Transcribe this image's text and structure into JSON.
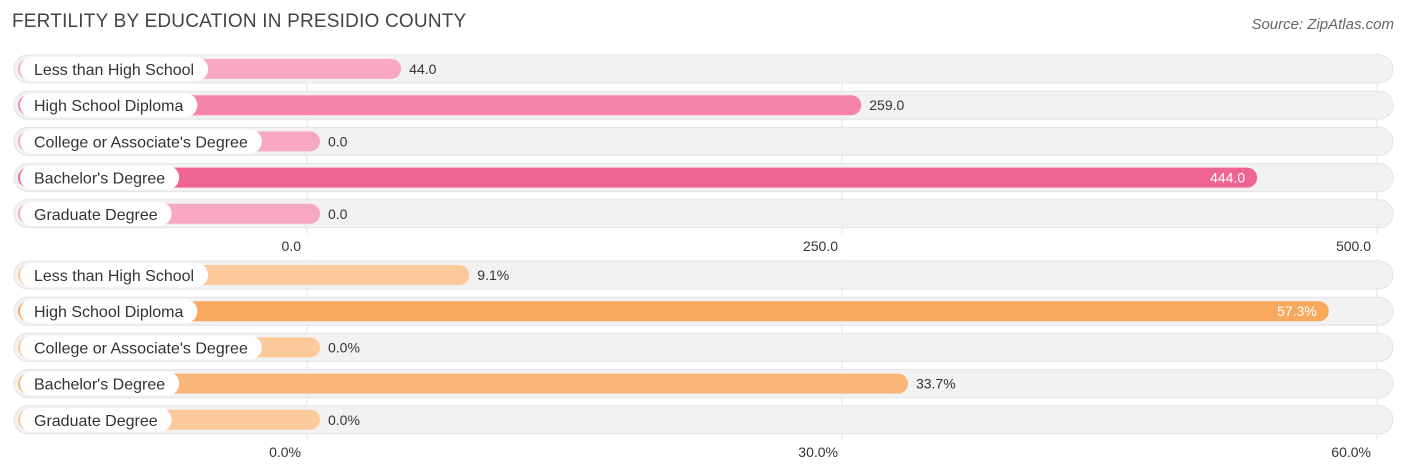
{
  "title": "FERTILITY BY EDUCATION IN PRESIDIO COUNTY",
  "source": "Source: ZipAtlas.com",
  "chart_data": [
    {
      "type": "bar",
      "orientation": "horizontal",
      "categories": [
        "Less than High School",
        "High School Diploma",
        "College or Associate's Degree",
        "Bachelor's Degree",
        "Graduate Degree"
      ],
      "values": [
        44.0,
        259.0,
        0.0,
        444.0,
        0.0
      ],
      "value_labels": [
        "44.0",
        "259.0",
        "0.0",
        "444.0",
        "0.0"
      ],
      "xlim": [
        0,
        500
      ],
      "ticks": [
        "0.0",
        "250.0",
        "500.0"
      ],
      "tick_values": [
        0,
        250,
        500
      ],
      "colors": [
        "#f9a8c3",
        "#f584aa",
        "#f9a8c3",
        "#ef6591",
        "#f9a8c3"
      ],
      "grid": true
    },
    {
      "type": "bar",
      "orientation": "horizontal",
      "categories": [
        "Less than High School",
        "High School Diploma",
        "College or Associate's Degree",
        "Bachelor's Degree",
        "Graduate Degree"
      ],
      "values": [
        9.1,
        57.3,
        0.0,
        33.7,
        0.0
      ],
      "value_labels": [
        "9.1%",
        "57.3%",
        "0.0%",
        "33.7%",
        "0.0%"
      ],
      "xlim": [
        0,
        60
      ],
      "ticks": [
        "0.0%",
        "30.0%",
        "60.0%"
      ],
      "tick_values": [
        0,
        30,
        60
      ],
      "colors": [
        "#fbc99a",
        "#f9a95e",
        "#fbc99a",
        "#fab679",
        "#fbc99a"
      ],
      "grid": true
    }
  ]
}
